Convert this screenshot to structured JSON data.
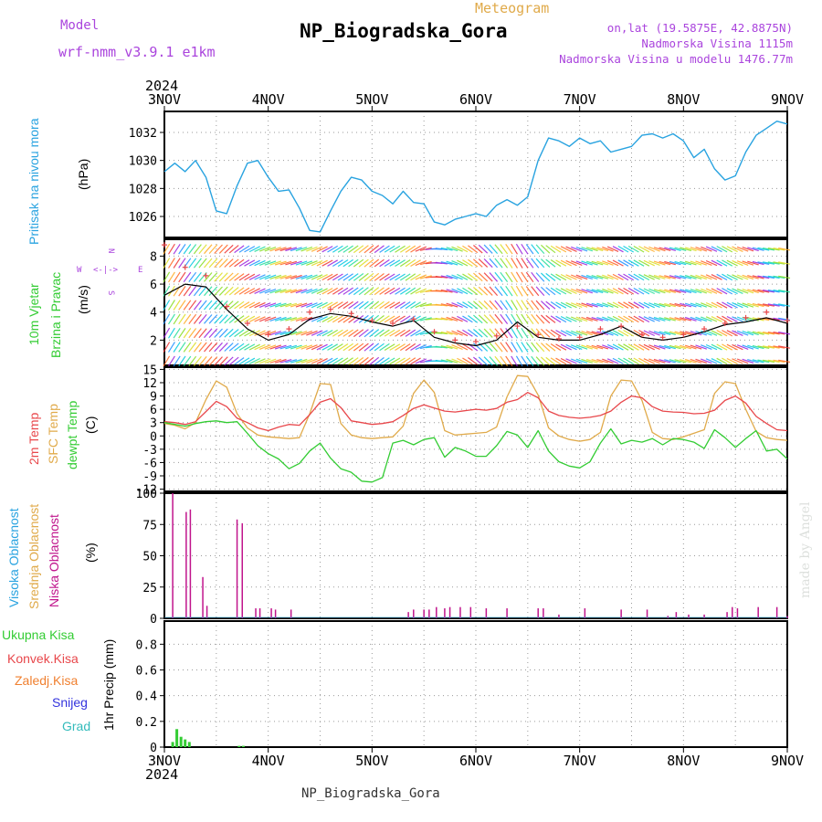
{
  "header": {
    "model_label": "Model",
    "model_name": "wrf-nmm_v3.9.1 e1km",
    "meteogram_label": "Meteogram",
    "station_title": "NP_Biogradska_Gora",
    "lonlat": "on,lat (19.5875E, 42.8875N)",
    "elevation": "Nadmorska Visina 1115m",
    "model_elevation": "Nadmorska Visina u modelu 1476.77m",
    "footer_title": "NP_Biogradska_Gora",
    "credit": "made by Angel"
  },
  "colors": {
    "pressure": "#29a3e0",
    "temp2m": "#e8474b",
    "sfc": "#e0aa4a",
    "dewpt": "#33cc33",
    "high_cloud": "#29a3e0",
    "mid_cloud": "#e0aa4a",
    "low_cloud": "#c0148c",
    "precip_total": "#33cc33",
    "precip_conv": "#e8474b",
    "precip_frz": "#f08030",
    "snow": "#3333dd",
    "graupel": "#33bbbb",
    "purple": "#aa44dd"
  },
  "chart_data": [
    {
      "type": "line",
      "panel": "pressure",
      "ylabel_left": "Pritisak na nivou mora",
      "unit": "(hPa)",
      "yticks": [
        "1026",
        "1028",
        "1030",
        "1032"
      ],
      "ylim": [
        1024.5,
        1033.5
      ],
      "x_days": [
        0,
        0.1,
        0.2,
        0.3,
        0.4,
        0.5,
        0.6,
        0.7,
        0.8,
        0.9,
        1.0,
        1.1,
        1.2,
        1.3,
        1.4,
        1.5,
        1.6,
        1.7,
        1.8,
        1.9,
        2.0,
        2.1,
        2.2,
        2.3,
        2.4,
        2.5,
        2.6,
        2.7,
        2.8,
        2.9,
        3.0,
        3.1,
        3.2,
        3.3,
        3.4,
        3.5,
        3.6,
        3.7,
        3.8,
        3.9,
        4.0,
        4.1,
        4.2,
        4.3,
        4.4,
        4.5,
        4.6,
        4.7,
        4.8,
        4.9,
        5.0,
        5.1,
        5.2,
        5.3,
        5.4,
        5.5,
        5.6,
        5.7,
        5.8,
        5.9,
        6.0
      ],
      "values": [
        1029.2,
        1029.8,
        1029.2,
        1030.0,
        1028.8,
        1026.4,
        1026.2,
        1028.2,
        1029.8,
        1030.0,
        1028.8,
        1027.8,
        1027.9,
        1026.6,
        1025.0,
        1024.9,
        1026.4,
        1027.8,
        1028.8,
        1028.6,
        1027.8,
        1027.5,
        1026.9,
        1027.8,
        1027.0,
        1026.9,
        1025.6,
        1025.4,
        1025.8,
        1026.0,
        1026.2,
        1026.0,
        1026.8,
        1027.2,
        1026.8,
        1027.4,
        1030.0,
        1031.6,
        1031.4,
        1031.0,
        1031.6,
        1031.2,
        1031.4,
        1030.6,
        1030.8,
        1031.0,
        1031.8,
        1031.9,
        1031.6,
        1031.9,
        1031.4,
        1030.2,
        1030.8,
        1029.4,
        1028.6,
        1028.9,
        1030.6,
        1031.8,
        1032.3,
        1032.8,
        1032.6
      ],
      "series": [
        {
          "name": "",
          "color": "#29a3e0"
        }
      ]
    },
    {
      "type": "line",
      "panel": "wind",
      "ylabel_left_1": "10m Vjetar",
      "ylabel_left_2": "Brzina i Pravac",
      "unit": "(m/s)",
      "yticks": [
        "2",
        "4",
        "6",
        "8"
      ],
      "ylim": [
        0.2,
        9.2
      ],
      "compass": [
        "N",
        "E",
        "S",
        "W"
      ],
      "x_days": [
        0,
        0.2,
        0.4,
        0.6,
        0.8,
        1.0,
        1.2,
        1.4,
        1.6,
        1.8,
        2.0,
        2.2,
        2.4,
        2.6,
        2.8,
        3.0,
        3.2,
        3.4,
        3.6,
        3.8,
        4.0,
        4.2,
        4.4,
        4.6,
        4.8,
        5.0,
        5.2,
        5.4,
        5.6,
        5.8,
        6.0
      ],
      "speed": [
        5.2,
        6.0,
        5.8,
        4.2,
        2.8,
        2.0,
        2.4,
        3.5,
        3.9,
        3.7,
        3.3,
        3.0,
        3.4,
        2.2,
        1.8,
        1.6,
        2.0,
        3.3,
        2.2,
        2.0,
        2.0,
        2.4,
        3.0,
        2.2,
        2.0,
        2.2,
        2.6,
        3.1,
        3.3,
        3.6,
        3.2
      ],
      "gust_markers": [
        8.8,
        7.2,
        6.6,
        4.4,
        3.2,
        2.4,
        2.8,
        4.0,
        4.2,
        3.9,
        3.4,
        3.2,
        3.5,
        2.6,
        2.0,
        1.9,
        2.3,
        3.0,
        2.4,
        2.1,
        2.2,
        2.8,
        3.0,
        2.4,
        2.2,
        2.4,
        2.8,
        3.2,
        3.6,
        4.0,
        3.4
      ],
      "arrow_dir_deg": [
        210,
        215,
        220,
        225,
        240,
        250,
        255,
        250,
        240,
        235,
        230,
        240,
        235,
        270,
        290,
        310,
        320,
        330,
        320,
        300,
        290,
        285,
        300,
        300,
        285,
        285,
        290,
        300,
        290,
        280,
        280
      ],
      "series": [
        {
          "name": "",
          "color": "#000000"
        },
        {
          "name": "",
          "color": "#e8474b"
        }
      ]
    },
    {
      "type": "line",
      "panel": "temperature",
      "ylabel_left_1": "2m Temp",
      "ylabel_left_2": "SFC Temp",
      "ylabel_left_3": "dewpt Temp",
      "unit": "(C)",
      "yticks": [
        "-12",
        "-9",
        "-6",
        "-3",
        "0",
        "3",
        "6",
        "9",
        "12",
        "15"
      ],
      "ylim": [
        -12.5,
        15.5
      ],
      "x_days": [
        0,
        0.1,
        0.2,
        0.3,
        0.4,
        0.5,
        0.6,
        0.7,
        0.8,
        0.9,
        1.0,
        1.1,
        1.2,
        1.3,
        1.4,
        1.5,
        1.6,
        1.7,
        1.8,
        1.9,
        2.0,
        2.1,
        2.2,
        2.3,
        2.4,
        2.5,
        2.6,
        2.7,
        2.8,
        2.9,
        3.0,
        3.1,
        3.2,
        3.3,
        3.4,
        3.5,
        3.6,
        3.7,
        3.8,
        3.9,
        4.0,
        4.1,
        4.2,
        4.3,
        4.4,
        4.5,
        4.6,
        4.7,
        4.8,
        4.9,
        5.0,
        5.1,
        5.2,
        5.3,
        5.4,
        5.5,
        5.6,
        5.7,
        5.8,
        5.9,
        6.0
      ],
      "temp2m": [
        3.2,
        3.0,
        2.6,
        3.2,
        5.5,
        7.8,
        6.6,
        4.0,
        3.0,
        1.8,
        1.2,
        2.0,
        2.6,
        2.4,
        4.8,
        7.6,
        8.4,
        6.4,
        3.4,
        3.0,
        2.6,
        2.8,
        3.2,
        4.6,
        6.2,
        7.0,
        6.3,
        5.6,
        5.4,
        5.7,
        6.0,
        5.8,
        6.2,
        7.6,
        8.2,
        9.8,
        8.6,
        5.6,
        4.6,
        4.2,
        4.0,
        4.2,
        4.6,
        5.6,
        7.6,
        9.0,
        8.6,
        6.6,
        5.6,
        5.4,
        5.3,
        5.0,
        5.1,
        5.8,
        8.0,
        9.0,
        7.4,
        4.4,
        2.8,
        1.4,
        1.2
      ],
      "sfc_temp": [
        2.8,
        2.4,
        1.6,
        3.0,
        8.2,
        12.4,
        11.0,
        5.0,
        1.8,
        0.2,
        -0.2,
        -0.4,
        -0.6,
        -0.4,
        5.0,
        11.8,
        11.6,
        2.8,
        0.2,
        -0.4,
        -0.6,
        -0.4,
        -0.2,
        2.2,
        9.6,
        12.6,
        9.8,
        1.2,
        0.2,
        0.4,
        0.6,
        0.8,
        2.0,
        8.8,
        13.6,
        13.4,
        9.2,
        1.8,
        0.0,
        -0.8,
        -1.2,
        -0.8,
        0.8,
        9.0,
        12.6,
        12.4,
        8.0,
        0.8,
        -0.6,
        -0.8,
        -0.2,
        0.6,
        1.4,
        9.6,
        12.2,
        11.8,
        6.0,
        1.0,
        -0.4,
        -0.8,
        -1.0
      ],
      "dewpt": [
        3.0,
        2.6,
        2.2,
        2.8,
        3.2,
        3.4,
        3.0,
        3.2,
        0.6,
        -2.2,
        -4.0,
        -5.2,
        -7.4,
        -6.2,
        -3.4,
        -1.6,
        -5.0,
        -7.4,
        -8.2,
        -10.2,
        -10.4,
        -9.4,
        -1.6,
        -1.0,
        -2.0,
        -0.8,
        -0.4,
        -4.8,
        -2.6,
        -3.4,
        -4.6,
        -4.6,
        -2.2,
        1.0,
        0.2,
        -2.6,
        1.2,
        -3.4,
        -5.8,
        -6.8,
        -7.2,
        -5.8,
        -1.6,
        1.6,
        -1.8,
        -1.0,
        -1.4,
        -0.6,
        -2.0,
        -0.6,
        -0.8,
        -1.4,
        -2.8,
        1.4,
        -0.4,
        -2.6,
        -0.6,
        1.2,
        -3.4,
        -3.0,
        -5.2
      ],
      "series": [
        {
          "name": "",
          "color": "#e8474b"
        },
        {
          "name": "",
          "color": "#e0aa4a"
        },
        {
          "name": "",
          "color": "#33cc33"
        }
      ]
    },
    {
      "type": "bar",
      "panel": "cloud",
      "ylabel_left_1": "Visoka Oblacnost",
      "ylabel_left_2": "Srednja Oblacnost",
      "ylabel_left_3": "Niska Oblacnost",
      "unit": "(%)",
      "yticks": [
        "0",
        "25",
        "50",
        "75",
        "100"
      ],
      "ylim": [
        0,
        100
      ],
      "low_x_days": [
        0.08,
        0.21,
        0.25,
        0.37,
        0.41,
        0.7,
        0.75,
        0.88,
        0.92,
        1.03,
        1.07,
        1.22,
        2.35,
        2.4,
        2.5,
        2.55,
        2.62,
        2.7,
        2.75,
        2.85,
        2.95,
        3.1,
        3.3,
        3.6,
        3.65,
        3.8,
        4.05,
        4.4,
        4.65,
        4.85,
        4.93,
        5.05,
        5.2,
        5.42,
        5.47,
        5.52,
        5.72,
        5.9,
        6.0
      ],
      "low_values": [
        100,
        85,
        87,
        33,
        10,
        79,
        76,
        8,
        8,
        8,
        7,
        7,
        5,
        7,
        7,
        7,
        9,
        8,
        9,
        9,
        9,
        8,
        8,
        8,
        8,
        3,
        8,
        7,
        7,
        2,
        5,
        3,
        3,
        5,
        9,
        8,
        9,
        9,
        2
      ],
      "series": [
        {
          "name": "",
          "color": "#c0148c"
        }
      ]
    },
    {
      "type": "bar",
      "panel": "precip",
      "legend": [
        "Ukupna Kisa",
        "Konvek.Kisa",
        "Zaledj.Kisa",
        "Snijeg",
        "Grad"
      ],
      "unit": "1hr Precip (mm)",
      "yticks": [
        "0",
        "0.2",
        "0.4",
        "0.6",
        "0.8"
      ],
      "ylim": [
        0,
        0.98
      ],
      "x_days": [
        0.08,
        0.12,
        0.16,
        0.2,
        0.24,
        0.72,
        0.76
      ],
      "values": [
        0.04,
        0.14,
        0.08,
        0.06,
        0.04,
        0.01,
        0.01
      ],
      "series": [
        {
          "name": "Ukupna Kisa",
          "color": "#33cc33"
        }
      ]
    }
  ],
  "x_axis": {
    "year_label": "2024",
    "day_labels": [
      "3NOV",
      "4NOV",
      "5NOV",
      "6NOV",
      "7NOV",
      "8NOV",
      "9NOV"
    ]
  }
}
